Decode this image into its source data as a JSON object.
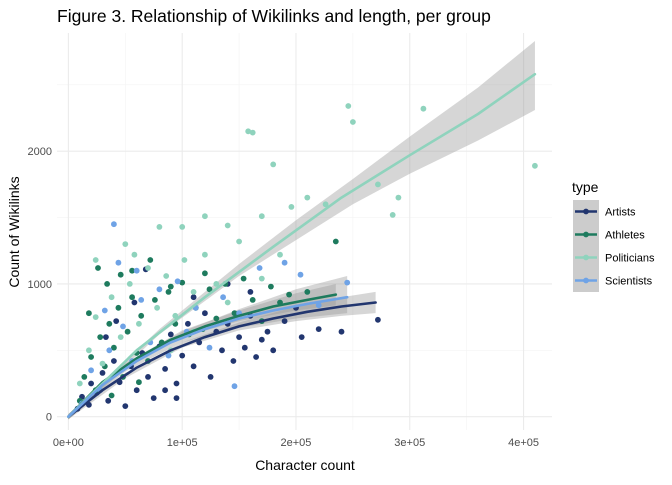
{
  "chart_data": {
    "type": "scatter",
    "title": "Figure 3. Relationship of Wikilinks and length, per group",
    "xlabel": "Character count",
    "ylabel": "Count of Wikilinks",
    "xlim": [
      -10000,
      425000
    ],
    "ylim": [
      -100,
      2890
    ],
    "x_ticks": [
      0,
      100000,
      200000,
      300000,
      400000
    ],
    "x_tick_labels": [
      "0e+00",
      "1e+05",
      "2e+05",
      "3e+05",
      "4e+05"
    ],
    "y_ticks": [
      0,
      1000,
      2000
    ],
    "y_tick_labels": [
      "0",
      "1000",
      "2000"
    ],
    "grid": true,
    "legend": {
      "title": "type",
      "position": "right"
    },
    "series": [
      {
        "name": "Artists",
        "color": "#22366f",
        "fit_x_max": 270000,
        "points": [
          [
            8000,
            60
          ],
          [
            12000,
            150
          ],
          [
            18000,
            90
          ],
          [
            20000,
            250
          ],
          [
            25000,
            180
          ],
          [
            30000,
            330
          ],
          [
            35000,
            120
          ],
          [
            40000,
            420
          ],
          [
            45000,
            260
          ],
          [
            50000,
            80
          ],
          [
            55000,
            380
          ],
          [
            60000,
            200
          ],
          [
            65000,
            480
          ],
          [
            70000,
            300
          ],
          [
            75000,
            140
          ],
          [
            80000,
            530
          ],
          [
            85000,
            360
          ],
          [
            90000,
            620
          ],
          [
            95000,
            250
          ],
          [
            100000,
            460
          ],
          [
            105000,
            700
          ],
          [
            110000,
            380
          ],
          [
            115000,
            560
          ],
          [
            120000,
            780
          ],
          [
            125000,
            300
          ],
          [
            130000,
            640
          ],
          [
            135000,
            500
          ],
          [
            140000,
            700
          ],
          [
            145000,
            420
          ],
          [
            150000,
            600
          ],
          [
            155000,
            520
          ],
          [
            160000,
            760
          ],
          [
            165000,
            450
          ],
          [
            170000,
            580
          ],
          [
            175000,
            640
          ],
          [
            180000,
            500
          ],
          [
            190000,
            720
          ],
          [
            200000,
            820
          ],
          [
            205000,
            600
          ],
          [
            220000,
            660
          ],
          [
            240000,
            640
          ],
          [
            272000,
            730
          ],
          [
            68000,
            1110
          ],
          [
            42000,
            720
          ],
          [
            33000,
            600
          ],
          [
            85000,
            200
          ],
          [
            95000,
            140
          ],
          [
            110000,
            900
          ],
          [
            58000,
            860
          ],
          [
            140000,
            1000
          ],
          [
            160000,
            940
          ]
        ],
        "fit": [
          [
            0,
            0
          ],
          [
            30000,
            200
          ],
          [
            60000,
            370
          ],
          [
            90000,
            500
          ],
          [
            120000,
            600
          ],
          [
            150000,
            680
          ],
          [
            180000,
            740
          ],
          [
            210000,
            790
          ],
          [
            240000,
            830
          ],
          [
            270000,
            860
          ]
        ],
        "ci": [
          [
            0,
            -20,
            20
          ],
          [
            50000,
            290,
            330
          ],
          [
            100000,
            520,
            560
          ],
          [
            150000,
            650,
            710
          ],
          [
            200000,
            720,
            830
          ],
          [
            240000,
            760,
            900
          ],
          [
            270000,
            780,
            940
          ]
        ]
      },
      {
        "name": "Athletes",
        "color": "#1e7b5e",
        "fit_x_max": 235000,
        "points": [
          [
            10000,
            120
          ],
          [
            14000,
            300
          ],
          [
            20000,
            450
          ],
          [
            24000,
            200
          ],
          [
            28000,
            600
          ],
          [
            32000,
            380
          ],
          [
            36000,
            700
          ],
          [
            40000,
            520
          ],
          [
            44000,
            820
          ],
          [
            48000,
            300
          ],
          [
            52000,
            640
          ],
          [
            56000,
            900
          ],
          [
            60000,
            480
          ],
          [
            64000,
            760
          ],
          [
            70000,
            420
          ],
          [
            76000,
            880
          ],
          [
            82000,
            560
          ],
          [
            88000,
            940
          ],
          [
            94000,
            700
          ],
          [
            100000,
            1010
          ],
          [
            106000,
            620
          ],
          [
            112000,
            820
          ],
          [
            118000,
            660
          ],
          [
            124000,
            960
          ],
          [
            130000,
            740
          ],
          [
            138000,
            1000
          ],
          [
            146000,
            780
          ],
          [
            154000,
            1040
          ],
          [
            162000,
            880
          ],
          [
            170000,
            720
          ],
          [
            178000,
            980
          ],
          [
            186000,
            860
          ],
          [
            194000,
            920
          ],
          [
            210000,
            940
          ],
          [
            235000,
            1320
          ],
          [
            26000,
            1120
          ],
          [
            34000,
            1000
          ],
          [
            46000,
            1070
          ],
          [
            18000,
            780
          ],
          [
            56000,
            1100
          ],
          [
            72000,
            1180
          ],
          [
            38000,
            160
          ],
          [
            62000,
            260
          ],
          [
            90000,
            980
          ],
          [
            120000,
            1080
          ]
        ],
        "fit": [
          [
            0,
            0
          ],
          [
            30000,
            260
          ],
          [
            60000,
            440
          ],
          [
            90000,
            580
          ],
          [
            120000,
            680
          ],
          [
            150000,
            760
          ],
          [
            180000,
            830
          ],
          [
            210000,
            880
          ],
          [
            235000,
            920
          ]
        ],
        "ci": [
          [
            0,
            -20,
            20
          ],
          [
            50000,
            360,
            400
          ],
          [
            100000,
            600,
            650
          ],
          [
            150000,
            720,
            800
          ],
          [
            200000,
            800,
            930
          ],
          [
            235000,
            840,
            1000
          ]
        ]
      },
      {
        "name": "Politicians",
        "color": "#8fd3bd",
        "fit_x_max": 410000,
        "points": [
          [
            10000,
            250
          ],
          [
            18000,
            500
          ],
          [
            24000,
            750
          ],
          [
            30000,
            400
          ],
          [
            38000,
            900
          ],
          [
            46000,
            600
          ],
          [
            54000,
            1000
          ],
          [
            62000,
            700
          ],
          [
            70000,
            1120
          ],
          [
            78000,
            820
          ],
          [
            86000,
            1060
          ],
          [
            94000,
            760
          ],
          [
            102000,
            1180
          ],
          [
            110000,
            940
          ],
          [
            120000,
            1220
          ],
          [
            130000,
            1000
          ],
          [
            140000,
            1440
          ],
          [
            150000,
            1320
          ],
          [
            158000,
            2150
          ],
          [
            162000,
            2140
          ],
          [
            170000,
            1510
          ],
          [
            180000,
            1900
          ],
          [
            186000,
            1220
          ],
          [
            196000,
            1580
          ],
          [
            210000,
            1650
          ],
          [
            226000,
            1600
          ],
          [
            246000,
            2340
          ],
          [
            250000,
            2220
          ],
          [
            272000,
            1750
          ],
          [
            285000,
            1520
          ],
          [
            290000,
            1650
          ],
          [
            312000,
            2320
          ],
          [
            410000,
            1890
          ],
          [
            100000,
            1430
          ],
          [
            120000,
            1510
          ],
          [
            80000,
            1430
          ],
          [
            50000,
            1300
          ],
          [
            58000,
            1220
          ],
          [
            90000,
            500
          ],
          [
            110000,
            640
          ],
          [
            140000,
            860
          ],
          [
            170000,
            1040
          ],
          [
            24000,
            1180
          ]
        ],
        "fit": [
          [
            0,
            0
          ],
          [
            60000,
            500
          ],
          [
            120000,
            900
          ],
          [
            180000,
            1280
          ],
          [
            240000,
            1650
          ],
          [
            300000,
            1970
          ],
          [
            360000,
            2280
          ],
          [
            410000,
            2580
          ]
        ],
        "ci": [
          [
            0,
            -20,
            20
          ],
          [
            80000,
            620,
            660
          ],
          [
            150000,
            1060,
            1150
          ],
          [
            200000,
            1330,
            1480
          ],
          [
            250000,
            1600,
            1790
          ],
          [
            300000,
            1830,
            2110
          ],
          [
            360000,
            2080,
            2480
          ],
          [
            410000,
            2310,
            2830
          ]
        ]
      },
      {
        "name": "Scientists",
        "color": "#6fa3e6",
        "fit_x_max": 245000,
        "points": [
          [
            12000,
            100
          ],
          [
            20000,
            350
          ],
          [
            28000,
            200
          ],
          [
            36000,
            500
          ],
          [
            40000,
            1450
          ],
          [
            44000,
            1160
          ],
          [
            48000,
            680
          ],
          [
            56000,
            420
          ],
          [
            64000,
            880
          ],
          [
            72000,
            560
          ],
          [
            80000,
            960
          ],
          [
            88000,
            460
          ],
          [
            96000,
            1020
          ],
          [
            104000,
            640
          ],
          [
            112000,
            820
          ],
          [
            124000,
            520
          ],
          [
            136000,
            900
          ],
          [
            146000,
            230
          ],
          [
            150000,
            780
          ],
          [
            168000,
            1120
          ],
          [
            190000,
            1160
          ],
          [
            204000,
            1070
          ],
          [
            220000,
            840
          ],
          [
            245000,
            1010
          ],
          [
            60000,
            1100
          ],
          [
            32000,
            800
          ]
        ],
        "fit": [
          [
            0,
            0
          ],
          [
            30000,
            240
          ],
          [
            60000,
            420
          ],
          [
            90000,
            560
          ],
          [
            120000,
            660
          ],
          [
            150000,
            740
          ],
          [
            180000,
            800
          ],
          [
            210000,
            850
          ],
          [
            245000,
            900
          ]
        ],
        "ci": [
          [
            0,
            -20,
            20
          ],
          [
            50000,
            340,
            390
          ],
          [
            100000,
            560,
            640
          ],
          [
            150000,
            670,
            810
          ],
          [
            200000,
            740,
            960
          ],
          [
            245000,
            780,
            1060
          ]
        ]
      }
    ]
  }
}
